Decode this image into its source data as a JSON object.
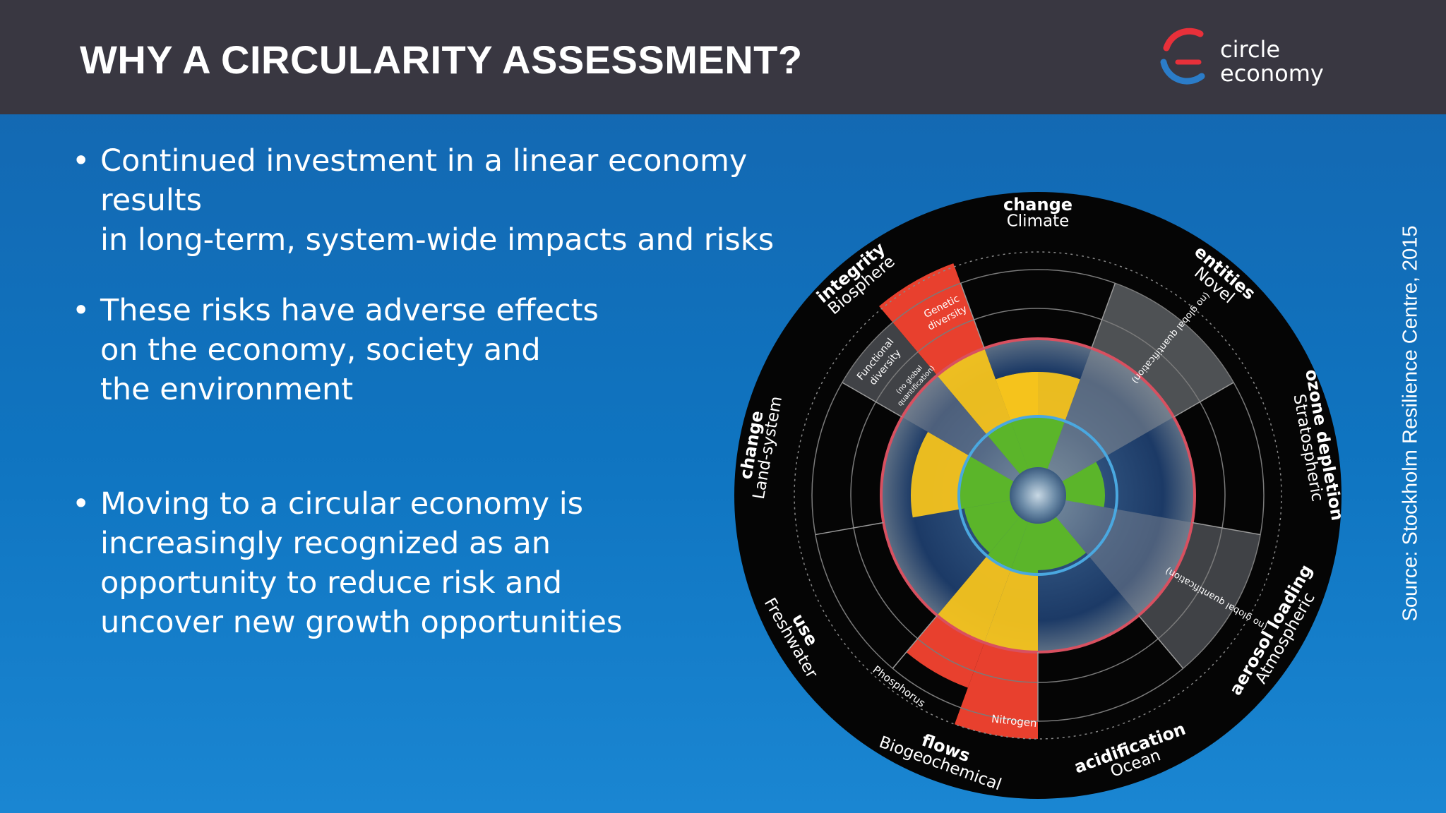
{
  "header": {
    "title": "WHY A CIRCULARITY ASSESSMENT?",
    "logo_line1": "circle",
    "logo_line2": "economy"
  },
  "bullets": [
    {
      "lines": [
        "Continued investment in a linear economy results",
        "in long-term, system-wide impacts and risks"
      ]
    },
    {
      "lines": [
        "These risks have adverse effects",
        "on the economy, society and",
        "the environment"
      ]
    },
    {
      "lines": [
        "Moving to a circular economy is",
        "increasingly recognized as an",
        "opportunity to reduce risk and",
        "uncover new growth opportunities"
      ]
    }
  ],
  "bullet_glyph": "•",
  "diagram": {
    "boundaries": [
      {
        "line1": "Climate",
        "line2": "change"
      },
      {
        "line1": "Novel",
        "line2": "entities"
      },
      {
        "line1": "Stratospheric",
        "line2": "ozone depletion"
      },
      {
        "line1": "Atmospheric",
        "line2": "aerosol loading"
      },
      {
        "line1": "Ocean",
        "line2": "acidification"
      },
      {
        "line1": "Biogeochemical",
        "line2": "flows"
      },
      {
        "line1": "Freshwater",
        "line2": "use"
      },
      {
        "line1": "Land-system",
        "line2": "change"
      },
      {
        "line1": "Biosphere",
        "line2": "integrity"
      }
    ],
    "sub_labels": {
      "genetic_1": "Genetic",
      "genetic_2": "diversity",
      "functional_1": "Functional",
      "functional_2": "diversity",
      "no_quant_1": "(no global",
      "no_quant_2": "quantification)",
      "no_quant_novel": "(no global quantification)",
      "no_quant_aerosol": "(no global quantification)",
      "phosphorus": "Phosphorus",
      "nitrogen": "Nitrogen"
    },
    "colors": {
      "green": "#5bb52a",
      "yellow": "#f5c31c",
      "red": "#e8402e",
      "boundary": "#d85060",
      "safe": "#4aa8e0"
    }
  },
  "source": "Source: Stockholm Resilience Centre, 2015"
}
